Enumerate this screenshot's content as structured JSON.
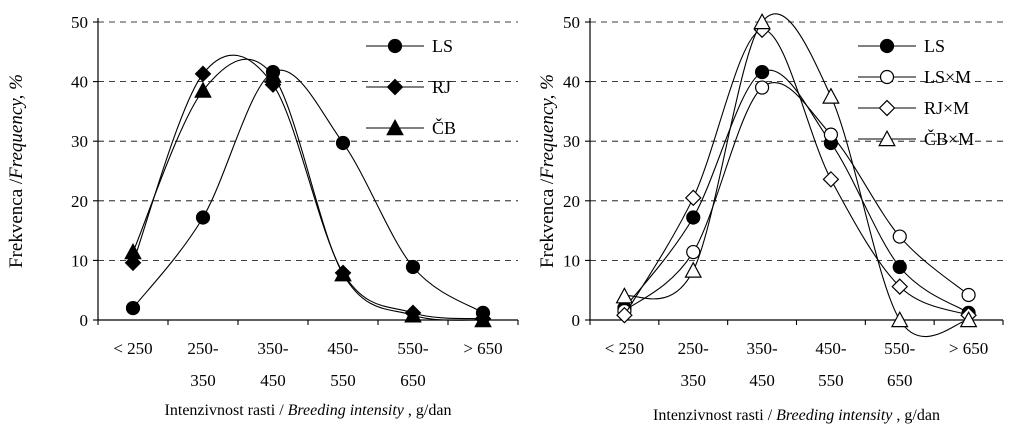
{
  "chart_data": [
    {
      "type": "line",
      "smooth": true,
      "categories": [
        "< 250",
        "250-\n350",
        "350-\n450",
        "450-\n550",
        "550-\n650",
        "> 650"
      ],
      "ylim": [
        0,
        50
      ],
      "yticks": [
        0,
        10,
        20,
        30,
        40,
        50
      ],
      "grid": "horizontal dashed",
      "legend_position": "top-right",
      "ylabel": {
        "plain": "Frekvenca /",
        "italic": "Frequency",
        "unit": ",  %"
      },
      "xlabel": {
        "plain": "Intenzivnost rasti / ",
        "italic": "Breeding intensity",
        "unit": " , g/dan"
      },
      "series": [
        {
          "name": "LS",
          "marker": "circle",
          "filled": true,
          "values": [
            2.0,
            17.2,
            41.6,
            29.7,
            8.9,
            1.2
          ]
        },
        {
          "name": "RJ",
          "marker": "diamond",
          "filled": true,
          "values": [
            9.6,
            41.3,
            39.5,
            7.9,
            1.2,
            0.2
          ]
        },
        {
          "name": "ČB",
          "marker": "triangle",
          "filled": true,
          "values": [
            11.4,
            38.5,
            41.0,
            7.7,
            0.8,
            0.0
          ]
        }
      ]
    },
    {
      "type": "line",
      "smooth": true,
      "categories": [
        "< 250",
        "250-\n350",
        "350-\n450",
        "450-\n550",
        "550-\n650",
        "> 650"
      ],
      "ylim": [
        0,
        50
      ],
      "yticks": [
        0,
        10,
        20,
        30,
        40,
        50
      ],
      "grid": "horizontal dashed",
      "legend_position": "top-right",
      "ylabel": {
        "plain": "Frekvenca /",
        "italic": "Frequency",
        "unit": ",  %"
      },
      "xlabel": {
        "plain": "Intenzivnost rasti / ",
        "italic": "Breeding intensity",
        "unit": " , g/dan"
      },
      "series": [
        {
          "name": "LS",
          "marker": "circle",
          "filled": true,
          "values": [
            2.0,
            17.2,
            41.6,
            29.7,
            8.9,
            1.2
          ]
        },
        {
          "name": "LS×M",
          "marker": "circle",
          "filled": false,
          "values": [
            1.5,
            11.4,
            39.0,
            31.1,
            14.0,
            4.2
          ]
        },
        {
          "name": "RJ×M",
          "marker": "diamond",
          "filled": false,
          "values": [
            0.8,
            20.5,
            48.7,
            23.6,
            5.6,
            0.8
          ]
        },
        {
          "name": "ČB×M",
          "marker": "triangle",
          "filled": false,
          "values": [
            4.0,
            8.3,
            50.0,
            37.5,
            0.0,
            0.0
          ]
        }
      ]
    }
  ]
}
